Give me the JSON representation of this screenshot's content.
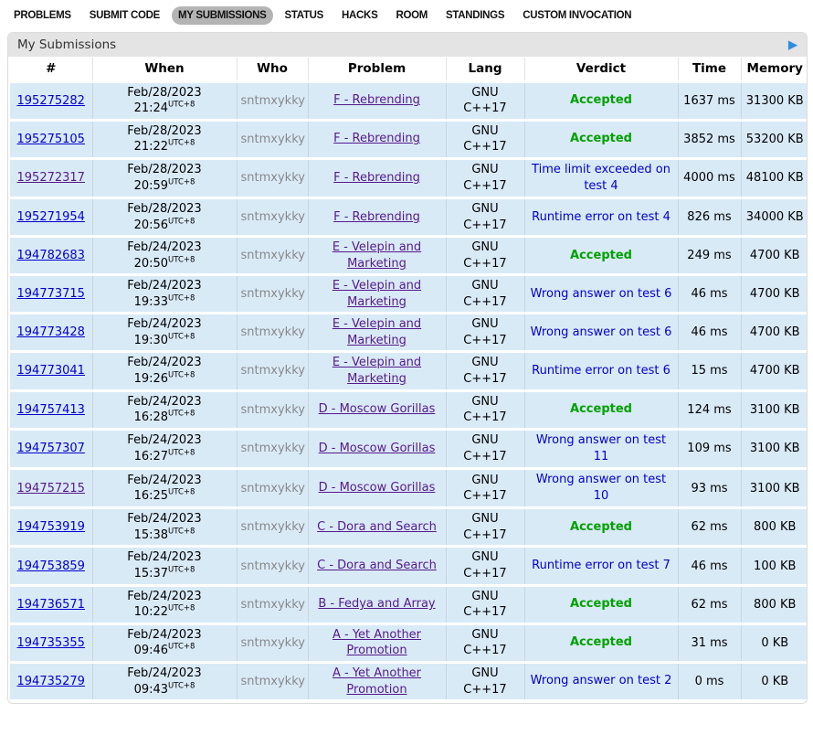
{
  "nav": {
    "items": [
      {
        "label": "PROBLEMS",
        "active": false
      },
      {
        "label": "SUBMIT CODE",
        "active": false
      },
      {
        "label": "MY SUBMISSIONS",
        "active": true
      },
      {
        "label": "STATUS",
        "active": false
      },
      {
        "label": "HACKS",
        "active": false
      },
      {
        "label": "ROOM",
        "active": false
      },
      {
        "label": "STANDINGS",
        "active": false
      },
      {
        "label": "CUSTOM INVOCATION",
        "active": false
      }
    ]
  },
  "widget": {
    "title": "My Submissions",
    "arrow_icon": "▶"
  },
  "table": {
    "headers": [
      "#",
      "When",
      "Who",
      "Problem",
      "Lang",
      "Verdict",
      "Time",
      "Memory"
    ],
    "column_keys": [
      "id",
      "when",
      "who",
      "problem",
      "lang",
      "verdict",
      "time",
      "memory"
    ],
    "rows": [
      {
        "id": "195275282",
        "date": "Feb/28/2023",
        "time": "21:24",
        "tz": "UTC+8",
        "who": "sntmxykky",
        "problem": "F - Rebrending",
        "lang": "GNU C++17",
        "verdict": "Accepted",
        "verdict_type": "accepted",
        "time_ms": "1637 ms",
        "memory": "31300 KB",
        "visited": false
      },
      {
        "id": "195275105",
        "date": "Feb/28/2023",
        "time": "21:22",
        "tz": "UTC+8",
        "who": "sntmxykky",
        "problem": "F - Rebrending",
        "lang": "GNU C++17",
        "verdict": "Accepted",
        "verdict_type": "accepted",
        "time_ms": "3852 ms",
        "memory": "53200 KB",
        "visited": false
      },
      {
        "id": "195272317",
        "date": "Feb/28/2023",
        "time": "20:59",
        "tz": "UTC+8",
        "who": "sntmxykky",
        "problem": "F - Rebrending",
        "lang": "GNU C++17",
        "verdict": "Time limit exceeded on test 4",
        "verdict_type": "rejected",
        "time_ms": "4000 ms",
        "memory": "48100 KB",
        "visited": true
      },
      {
        "id": "195271954",
        "date": "Feb/28/2023",
        "time": "20:56",
        "tz": "UTC+8",
        "who": "sntmxykky",
        "problem": "F - Rebrending",
        "lang": "GNU C++17",
        "verdict": "Runtime error on test 4",
        "verdict_type": "rejected",
        "time_ms": "826 ms",
        "memory": "34000 KB",
        "visited": false
      },
      {
        "id": "194782683",
        "date": "Feb/24/2023",
        "time": "20:50",
        "tz": "UTC+8",
        "who": "sntmxykky",
        "problem": "E - Velepin and Marketing",
        "lang": "GNU C++17",
        "verdict": "Accepted",
        "verdict_type": "accepted",
        "time_ms": "249 ms",
        "memory": "4700 KB",
        "visited": false
      },
      {
        "id": "194773715",
        "date": "Feb/24/2023",
        "time": "19:33",
        "tz": "UTC+8",
        "who": "sntmxykky",
        "problem": "E - Velepin and Marketing",
        "lang": "GNU C++17",
        "verdict": "Wrong answer on test 6",
        "verdict_type": "rejected",
        "time_ms": "46 ms",
        "memory": "4700 KB",
        "visited": false
      },
      {
        "id": "194773428",
        "date": "Feb/24/2023",
        "time": "19:30",
        "tz": "UTC+8",
        "who": "sntmxykky",
        "problem": "E - Velepin and Marketing",
        "lang": "GNU C++17",
        "verdict": "Wrong answer on test 6",
        "verdict_type": "rejected",
        "time_ms": "46 ms",
        "memory": "4700 KB",
        "visited": false
      },
      {
        "id": "194773041",
        "date": "Feb/24/2023",
        "time": "19:26",
        "tz": "UTC+8",
        "who": "sntmxykky",
        "problem": "E - Velepin and Marketing",
        "lang": "GNU C++17",
        "verdict": "Runtime error on test 6",
        "verdict_type": "rejected",
        "time_ms": "15 ms",
        "memory": "4700 KB",
        "visited": false
      },
      {
        "id": "194757413",
        "date": "Feb/24/2023",
        "time": "16:28",
        "tz": "UTC+8",
        "who": "sntmxykky",
        "problem": "D - Moscow Gorillas",
        "lang": "GNU C++17",
        "verdict": "Accepted",
        "verdict_type": "accepted",
        "time_ms": "124 ms",
        "memory": "3100 KB",
        "visited": false
      },
      {
        "id": "194757307",
        "date": "Feb/24/2023",
        "time": "16:27",
        "tz": "UTC+8",
        "who": "sntmxykky",
        "problem": "D - Moscow Gorillas",
        "lang": "GNU C++17",
        "verdict": "Wrong answer on test 11",
        "verdict_type": "rejected",
        "time_ms": "109 ms",
        "memory": "3100 KB",
        "visited": false
      },
      {
        "id": "194757215",
        "date": "Feb/24/2023",
        "time": "16:25",
        "tz": "UTC+8",
        "who": "sntmxykky",
        "problem": "D - Moscow Gorillas",
        "lang": "GNU C++17",
        "verdict": "Wrong answer on test 10",
        "verdict_type": "rejected",
        "time_ms": "93 ms",
        "memory": "3100 KB",
        "visited": true
      },
      {
        "id": "194753919",
        "date": "Feb/24/2023",
        "time": "15:38",
        "tz": "UTC+8",
        "who": "sntmxykky",
        "problem": "C - Dora and Search",
        "lang": "GNU C++17",
        "verdict": "Accepted",
        "verdict_type": "accepted",
        "time_ms": "62 ms",
        "memory": "800 KB",
        "visited": false
      },
      {
        "id": "194753859",
        "date": "Feb/24/2023",
        "time": "15:37",
        "tz": "UTC+8",
        "who": "sntmxykky",
        "problem": "C - Dora and Search",
        "lang": "GNU C++17",
        "verdict": "Runtime error on test 7",
        "verdict_type": "rejected",
        "time_ms": "46 ms",
        "memory": "100 KB",
        "visited": false
      },
      {
        "id": "194736571",
        "date": "Feb/24/2023",
        "time": "10:22",
        "tz": "UTC+8",
        "who": "sntmxykky",
        "problem": "B - Fedya and Array",
        "lang": "GNU C++17",
        "verdict": "Accepted",
        "verdict_type": "accepted",
        "time_ms": "62 ms",
        "memory": "800 KB",
        "visited": false
      },
      {
        "id": "194735355",
        "date": "Feb/24/2023",
        "time": "09:46",
        "tz": "UTC+8",
        "who": "sntmxykky",
        "problem": "A - Yet Another Promotion",
        "lang": "GNU C++17",
        "verdict": "Accepted",
        "verdict_type": "accepted",
        "time_ms": "31 ms",
        "memory": "0 KB",
        "visited": false
      },
      {
        "id": "194735279",
        "date": "Feb/24/2023",
        "time": "09:43",
        "tz": "UTC+8",
        "who": "sntmxykky",
        "problem": "A - Yet Another Promotion",
        "lang": "GNU C++17",
        "verdict": "Wrong answer on test 2",
        "verdict_type": "rejected",
        "time_ms": "0 ms",
        "memory": "0 KB",
        "visited": false
      }
    ]
  },
  "colors": {
    "link_blue": "#0000cc",
    "visited_purple": "#551a8b",
    "accepted_green": "#00a100",
    "rejected_blue": "#0000cc",
    "row_bg": "#d9eaf7",
    "caption_bg": "#e4e4e4",
    "nav_active_bg": "#b4b4b4",
    "arrow_blue": "#2f8be0",
    "frame_border": "#dcdcdc",
    "grid_vertical": "#c9d5de",
    "who_gray": "#888888"
  }
}
